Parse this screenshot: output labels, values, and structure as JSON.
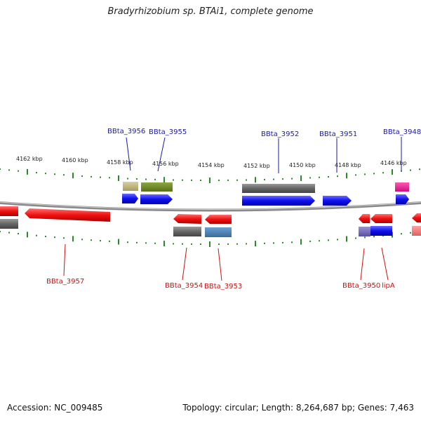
{
  "title": "Bradyrhizobium sp. BTAi1, complete genome",
  "footer": {
    "accession": "Accession: NC_009485",
    "summary": "Topology: circular; Length: 8,264,687 bp; Genes: 7,463"
  },
  "scale_labels": [
    "4162 kbp",
    "4160 kbp",
    "4158 kbp",
    "4156 kbp",
    "4154 kbp",
    "4152 kbp",
    "4150 kbp",
    "4148 kbp",
    "4146 kbp"
  ],
  "genes_top": [
    "BBta_3956",
    "BBta_3955",
    "BBta_3952",
    "BBta_3951",
    "BBta_3948"
  ],
  "genes_bottom": [
    "BBta_3957",
    "BBta_3954",
    "BBta_3953",
    "BBta_3950",
    "lipA"
  ],
  "colors": {
    "forward_cds": "#1010ee",
    "reverse_cds": "#ee1111",
    "top_label": "#1a1aaa",
    "bottom_label": "#cc1111",
    "tick": "#2a8a2a",
    "backbone": "#8a8a8a"
  }
}
